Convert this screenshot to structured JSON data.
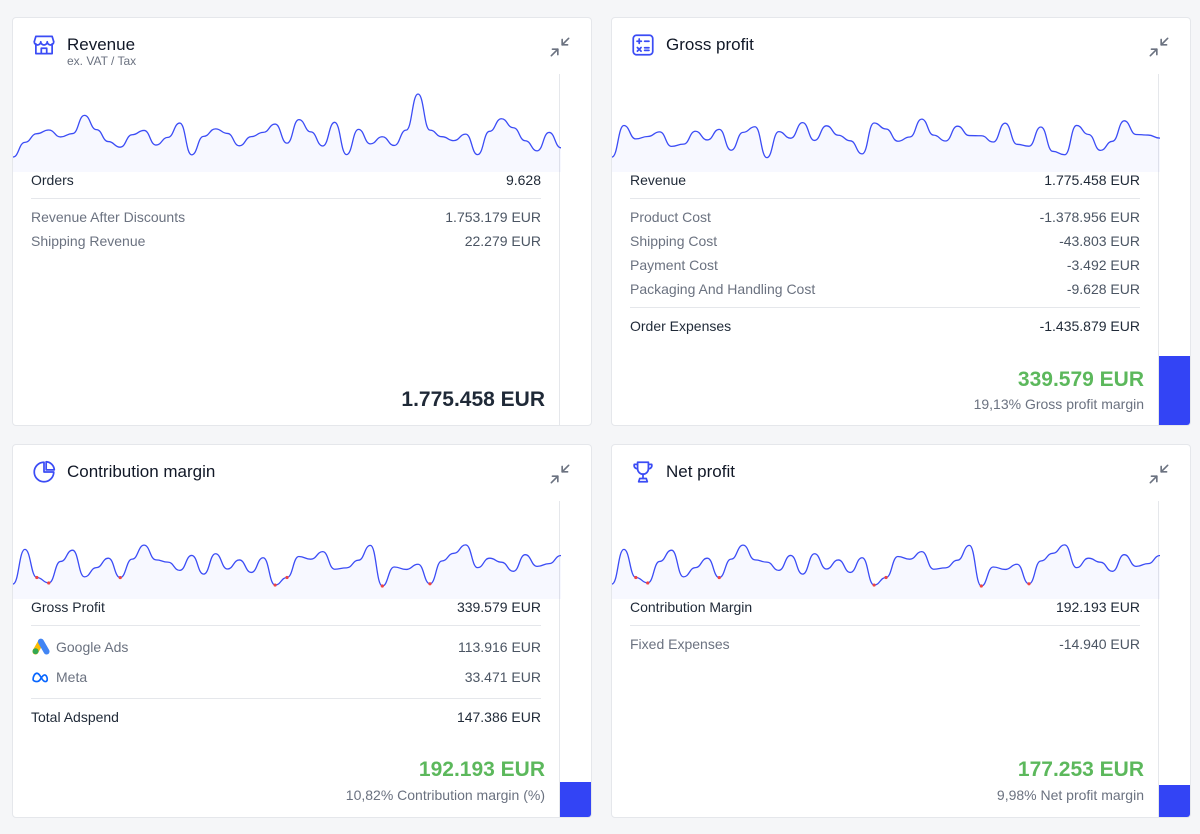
{
  "cards": {
    "revenue": {
      "title": "Revenue",
      "subtitle": "ex. VAT / Tax",
      "rows": [
        {
          "label": "Orders",
          "value": "9.628"
        },
        {
          "label": "Revenue After Discounts",
          "value": "1.753.179 EUR"
        },
        {
          "label": "Shipping Revenue",
          "value": "22.279 EUR"
        }
      ],
      "total": "1.775.458 EUR"
    },
    "gross_profit": {
      "title": "Gross profit",
      "rows": [
        {
          "label": "Revenue",
          "value": "1.775.458 EUR"
        },
        {
          "label": "Product Cost",
          "value": "-1.378.956 EUR"
        },
        {
          "label": "Shipping Cost",
          "value": "-43.803 EUR"
        },
        {
          "label": "Payment Cost",
          "value": "-3.492 EUR"
        },
        {
          "label": "Packaging And Handling Cost",
          "value": "-9.628 EUR"
        },
        {
          "label": "Order Expenses",
          "value": "-1.435.879 EUR"
        }
      ],
      "total": "339.579 EUR",
      "caption": "19,13% Gross profit margin",
      "margin_fraction": 0.1913
    },
    "contribution_margin": {
      "title": "Contribution margin",
      "rows": [
        {
          "label": "Gross Profit",
          "value": "339.579 EUR"
        },
        {
          "label": "Google Ads",
          "value": "113.916 EUR",
          "icon": "google-ads-icon"
        },
        {
          "label": "Meta",
          "value": "33.471 EUR",
          "icon": "meta-icon"
        },
        {
          "label": "Total Adspend",
          "value": "147.386 EUR"
        }
      ],
      "total": "192.193 EUR",
      "caption": "10,82% Contribution margin (%)",
      "margin_fraction": 0.1082
    },
    "net_profit": {
      "title": "Net profit",
      "rows": [
        {
          "label": "Contribution Margin",
          "value": "192.193 EUR"
        },
        {
          "label": "Fixed Expenses",
          "value": "-14.940 EUR"
        }
      ],
      "total": "177.253 EUR",
      "caption": "9,98% Net profit margin",
      "margin_fraction": 0.0998
    }
  },
  "icons": {
    "revenue": "storefront-icon",
    "gross_profit": "calculator-icon",
    "contribution_margin": "pie-chart-icon",
    "net_profit": "trophy-icon",
    "collapse": "collapse-arrows-icon"
  },
  "colors": {
    "accent": "#3344f5",
    "positive": "#5cb85c",
    "sparkline": "#3b4cf5",
    "sparkline_negative": "#ef4444"
  }
}
